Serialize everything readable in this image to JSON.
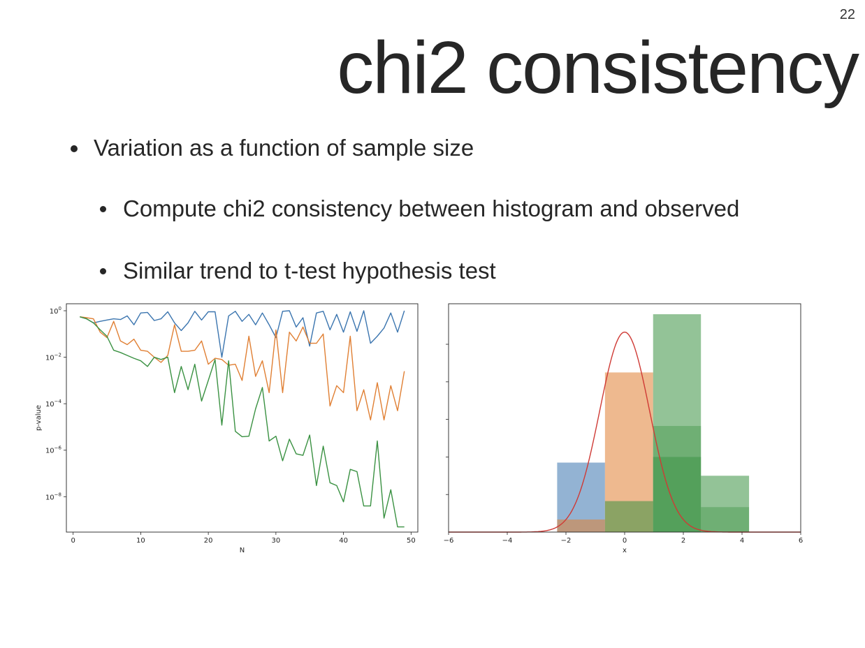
{
  "slide": {
    "number": "22",
    "title": "chi2 consistency",
    "bullets": [
      {
        "level": 1,
        "text": "Variation as a function of sample size"
      },
      {
        "level": 2,
        "text": "Compute chi2 consistency between histogram and observed"
      },
      {
        "level": 2,
        "text": "Similar trend to t-test hypothesis test"
      }
    ]
  },
  "chart_data": [
    {
      "type": "line",
      "xlabel": "N",
      "ylabel": "p-value",
      "yscale": "log",
      "xlim": [
        -1,
        51
      ],
      "ylim": [
        3e-10,
        2
      ],
      "xticks": [
        0,
        10,
        20,
        30,
        40,
        50
      ],
      "yticks": [
        {
          "value": 1,
          "base": "10",
          "exp": "0"
        },
        {
          "value": 0.01,
          "base": "10",
          "exp": "−2"
        },
        {
          "value": 0.0001,
          "base": "10",
          "exp": "−4"
        },
        {
          "value": 1e-06,
          "base": "10",
          "exp": "−6"
        },
        {
          "value": 1e-08,
          "base": "10",
          "exp": "−8"
        }
      ],
      "x": [
        1,
        2,
        3,
        4,
        5,
        6,
        7,
        8,
        9,
        10,
        11,
        12,
        13,
        14,
        15,
        16,
        17,
        18,
        19,
        20,
        21,
        22,
        23,
        24,
        25,
        26,
        27,
        28,
        29,
        30,
        31,
        32,
        33,
        34,
        35,
        36,
        37,
        38,
        39,
        40,
        41,
        42,
        43,
        44,
        45,
        46,
        47,
        48,
        49
      ],
      "series": [
        {
          "color": "#3b75af",
          "values": [
            0.55,
            0.45,
            0.3,
            0.35,
            0.4,
            0.45,
            0.42,
            0.6,
            0.25,
            0.8,
            0.85,
            0.38,
            0.45,
            0.9,
            0.3,
            0.14,
            0.3,
            0.95,
            0.4,
            0.9,
            0.9,
            0.01,
            0.6,
            0.95,
            0.35,
            0.7,
            0.25,
            0.8,
            0.25,
            0.07,
            0.95,
            1.0,
            0.2,
            0.5,
            0.03,
            0.8,
            0.95,
            0.15,
            0.7,
            0.12,
            0.9,
            0.13,
            1.0,
            0.04,
            0.08,
            0.18,
            0.8,
            0.12,
            1.0
          ]
        },
        {
          "color": "#e07f33",
          "values": [
            0.55,
            0.5,
            0.45,
            0.12,
            0.07,
            0.35,
            0.05,
            0.035,
            0.06,
            0.02,
            0.018,
            0.01,
            0.006,
            0.012,
            0.25,
            0.018,
            0.018,
            0.02,
            0.05,
            0.005,
            0.009,
            0.008,
            0.0045,
            0.005,
            0.001,
            0.08,
            0.0015,
            0.007,
            0.0003,
            0.15,
            0.0003,
            0.12,
            0.05,
            0.2,
            0.04,
            0.04,
            0.1,
            8e-05,
            0.0006,
            0.0003,
            0.08,
            5e-05,
            0.0004,
            2e-05,
            0.0008,
            2e-05,
            0.0006,
            5e-05,
            0.0025
          ]
        },
        {
          "color": "#3a9142",
          "values": [
            0.55,
            0.45,
            0.3,
            0.15,
            0.08,
            0.02,
            0.016,
            0.012,
            0.009,
            0.007,
            0.004,
            0.01,
            0.008,
            0.01,
            0.0003,
            0.004,
            0.0004,
            0.005,
            0.00013,
            0.001,
            0.008,
            1.2e-05,
            0.007,
            6.5e-06,
            3.8e-06,
            4e-06,
            6e-05,
            0.0005,
            2.5e-06,
            4e-06,
            3.5e-07,
            3e-06,
            7e-07,
            6e-07,
            4.5e-06,
            3e-08,
            1.5e-06,
            4e-08,
            3e-08,
            6e-09,
            1.5e-07,
            1.2e-07,
            4e-09,
            4e-09,
            2.5e-06,
            1.2e-09,
            2e-08,
            5e-10,
            5e-10
          ]
        }
      ]
    },
    {
      "type": "histogram",
      "xlabel": "x",
      "xlim": [
        -6,
        6
      ],
      "ylim": [
        0,
        1.16
      ],
      "xticks": [
        -6,
        -4,
        -2,
        0,
        2,
        4,
        6
      ],
      "ytick_values": [
        0.2,
        0.4,
        0.6,
        0.8,
        1.0
      ],
      "bin_edges": [
        -2.3,
        -0.67,
        0.97,
        2.6,
        4.24
      ],
      "series": [
        {
          "color": "#3b75af",
          "opacity": 0.55,
          "counts": [
            0.37,
            0.0,
            0.0,
            0.0
          ]
        },
        {
          "color": "#e07f33",
          "opacity": 0.55,
          "counts": [
            0.067,
            0.85,
            0.0,
            0.0
          ]
        },
        {
          "color": "#3a9142",
          "opacity": 0.55,
          "counts": [
            0.0,
            0.165,
            1.16,
            0.3
          ]
        },
        {
          "color": "#3a9142",
          "opacity": 0.4,
          "counts": [
            0.0,
            0.0,
            0.565,
            0.133
          ]
        },
        {
          "color": "#3a9142",
          "opacity": 0.5,
          "counts": [
            0.0,
            0.0,
            0.4,
            0.0
          ]
        }
      ],
      "curve": {
        "color": "#cf3a35",
        "type": "normal-pdf",
        "mean": 0,
        "std": 0.85,
        "peak": 1.065
      }
    }
  ]
}
